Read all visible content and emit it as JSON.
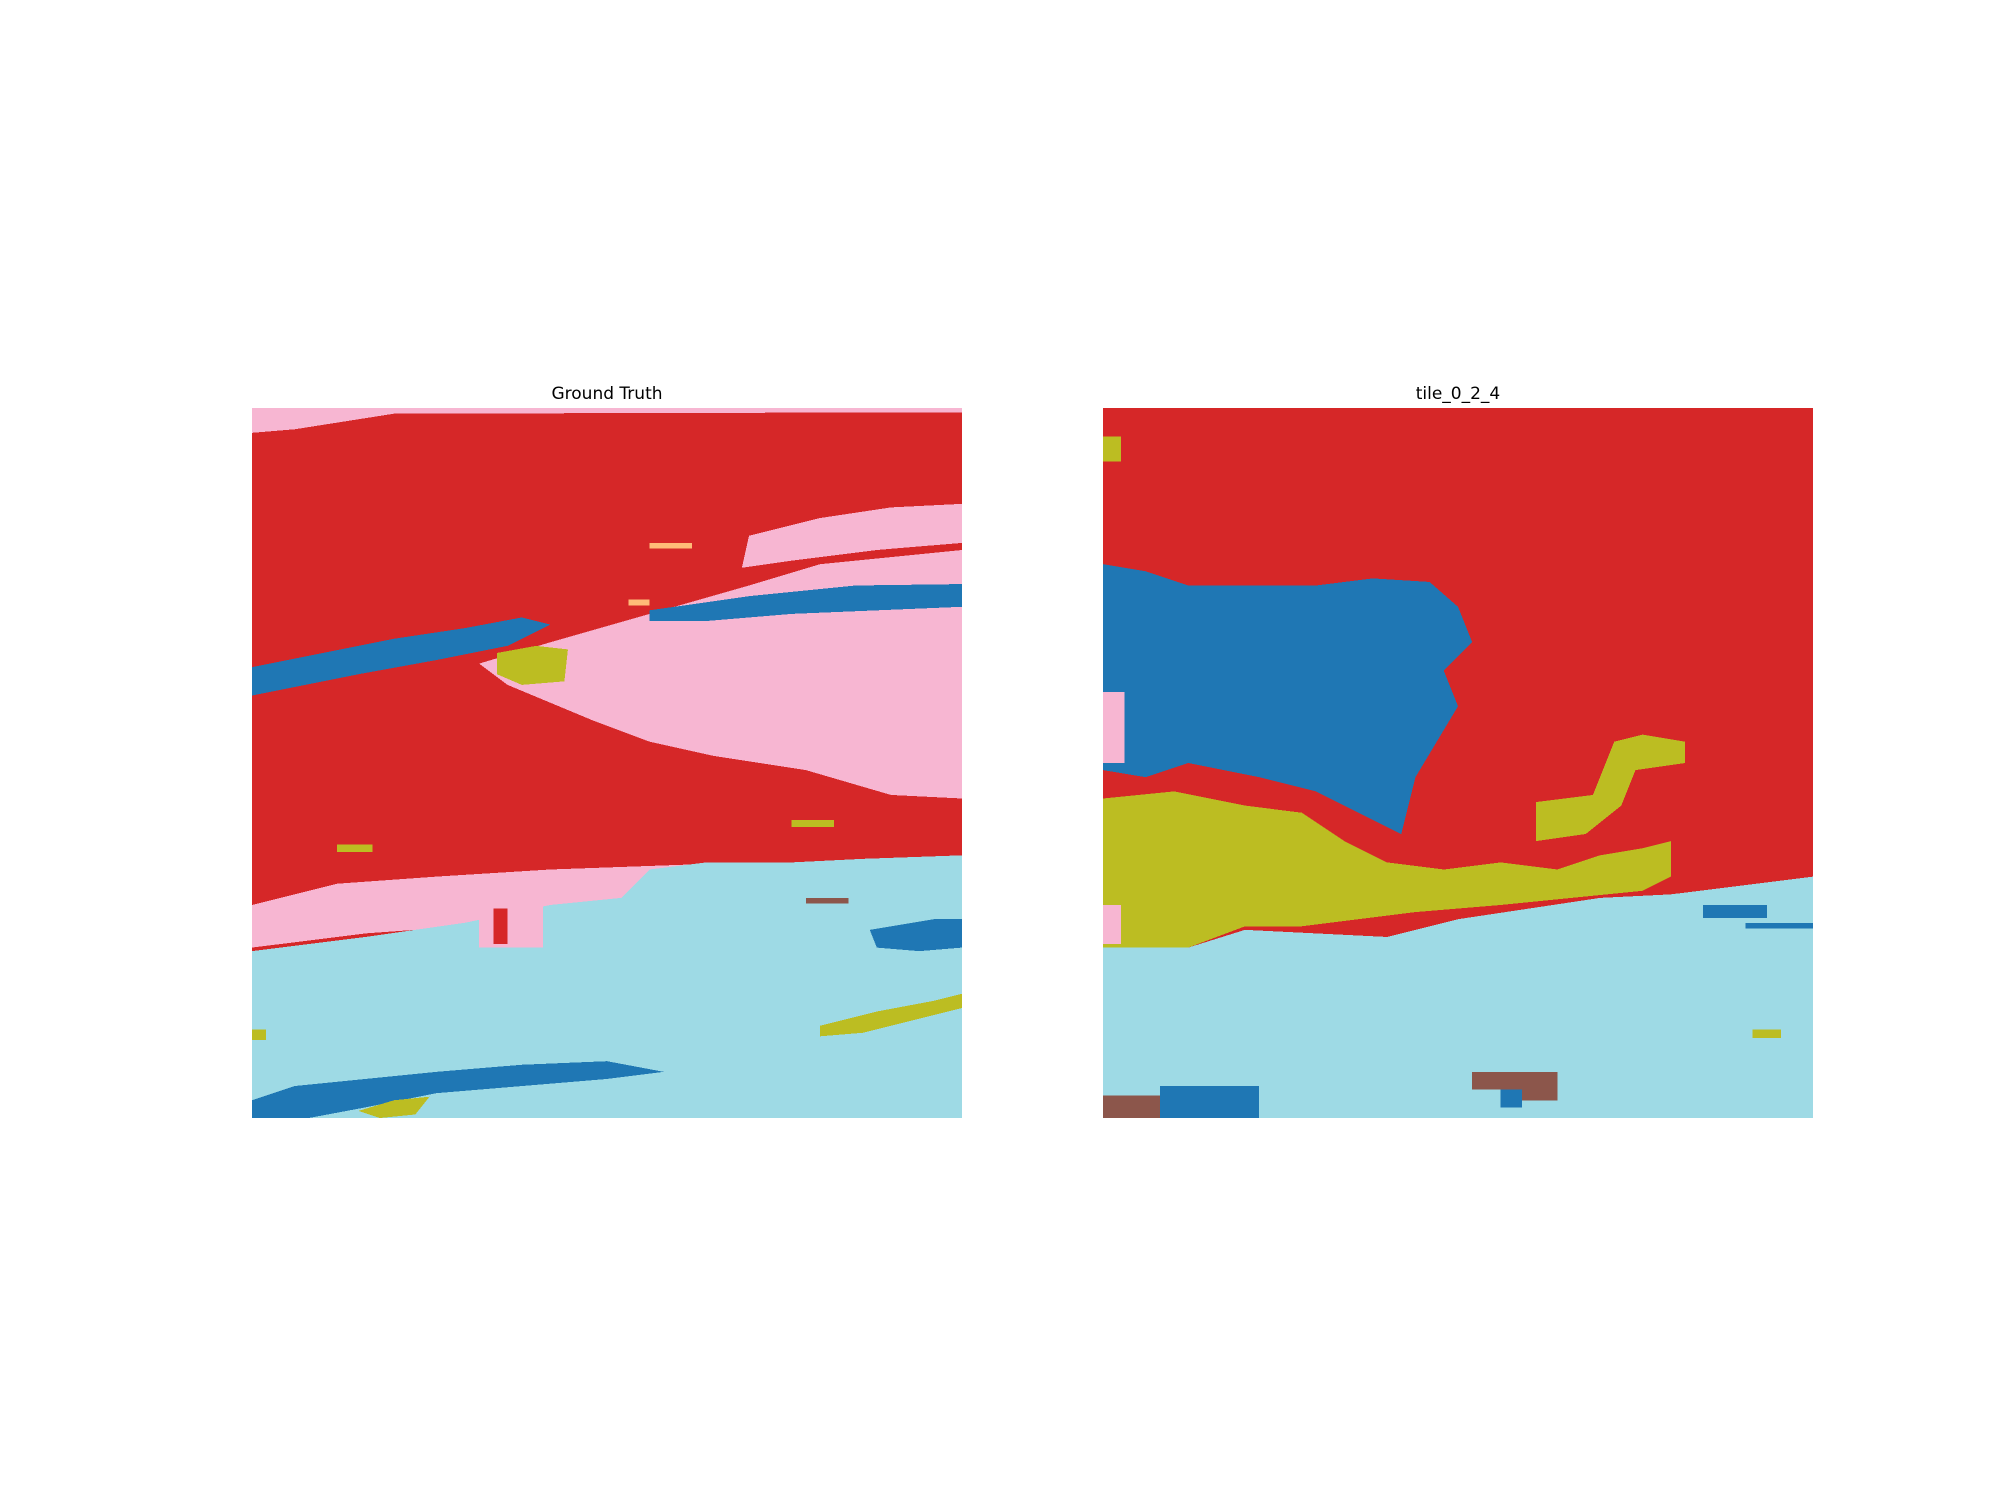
{
  "panels": [
    {
      "title": "Ground Truth"
    },
    {
      "title": "tile_0_2_4"
    }
  ],
  "class_colors": {
    "red": "#d62728",
    "pink": "#f7b6d2",
    "blue": "#1f77b4",
    "olive": "#bcbd22",
    "light_blue": "#9edae5",
    "brown": "#8c564b",
    "peach": "#ffbb78"
  }
}
